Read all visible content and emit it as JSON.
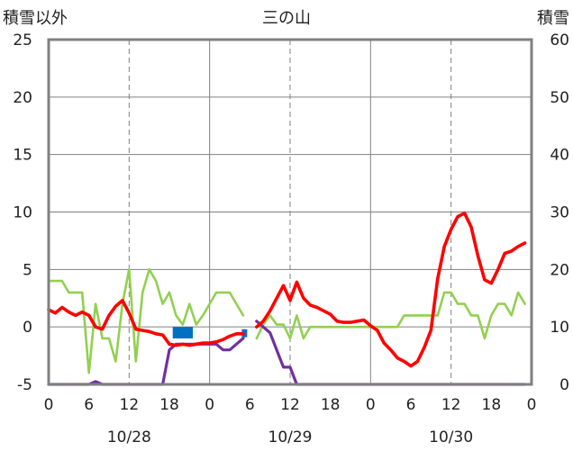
{
  "chart_data": {
    "type": "line",
    "title": "三の山",
    "left_axis_title": "積雪以外",
    "right_axis_title": "積雪",
    "y_left": {
      "min": -5,
      "max": 25,
      "ticks": [
        "-5",
        "0",
        "5",
        "10",
        "15",
        "20",
        "25"
      ]
    },
    "y_right": {
      "min": 0,
      "max": 60,
      "ticks": [
        "0",
        "10",
        "20",
        "30",
        "40",
        "50",
        "60"
      ]
    },
    "x": {
      "min": 0,
      "max": 72,
      "unit": "hours"
    },
    "x_tick_labels": [
      "0",
      "6",
      "12",
      "18",
      "0",
      "6",
      "12",
      "18",
      "0",
      "6",
      "12",
      "18",
      "0"
    ],
    "date_labels": [
      {
        "hour": 12,
        "text": "10/28"
      },
      {
        "hour": 36,
        "text": "10/29"
      },
      {
        "hour": 60,
        "text": "10/30"
      }
    ],
    "colors": {
      "temperature": "#ff0000",
      "wind": "#92d050",
      "snow_depth": "#7030a0",
      "precipitation": "#0070c0",
      "frame": "#808080",
      "grid": "#808080"
    },
    "series": [
      {
        "key": "temperature",
        "axis": "left",
        "segments": [
          [
            [
              0,
              1.5
            ],
            [
              1,
              1.2
            ],
            [
              2,
              1.7
            ],
            [
              3,
              1.3
            ],
            [
              4,
              1.0
            ],
            [
              5,
              1.3
            ],
            [
              6,
              1.0
            ],
            [
              7,
              0
            ],
            [
              8,
              -0.2
            ],
            [
              9,
              1.0
            ],
            [
              10,
              1.8
            ],
            [
              11,
              2.3
            ],
            [
              12,
              1.2
            ],
            [
              13,
              -0.2
            ],
            [
              14,
              -0.3
            ],
            [
              15,
              -0.4
            ],
            [
              16,
              -0.6
            ],
            [
              17,
              -0.7
            ],
            [
              18,
              -1.5
            ],
            [
              19,
              -1.6
            ],
            [
              20,
              -1.5
            ],
            [
              21,
              -1.6
            ],
            [
              22,
              -1.5
            ],
            [
              23,
              -1.4
            ],
            [
              24,
              -1.4
            ],
            [
              25,
              -1.3
            ],
            [
              26,
              -1.1
            ],
            [
              27,
              -0.8
            ],
            [
              28,
              -0.6
            ],
            [
              29,
              -0.6
            ]
          ],
          [
            [
              31,
              0.0
            ],
            [
              32,
              0.5
            ],
            [
              33,
              1.4
            ],
            [
              34,
              2.5
            ],
            [
              35,
              3.6
            ],
            [
              36,
              2.3
            ],
            [
              37,
              3.9
            ],
            [
              38,
              2.5
            ],
            [
              39,
              1.9
            ],
            [
              40,
              1.7
            ],
            [
              41,
              1.4
            ],
            [
              42,
              1.1
            ],
            [
              43,
              0.5
            ],
            [
              44,
              0.4
            ],
            [
              45,
              0.4
            ],
            [
              46,
              0.5
            ],
            [
              47,
              0.6
            ],
            [
              48,
              0.1
            ],
            [
              49,
              -0.3
            ],
            [
              50,
              -1.4
            ],
            [
              51,
              -2.0
            ],
            [
              52,
              -2.7
            ],
            [
              53,
              -3.0
            ],
            [
              54,
              -3.4
            ],
            [
              55,
              -3.0
            ],
            [
              56,
              -1.8
            ],
            [
              57,
              -0.3
            ],
            [
              58,
              4.2
            ],
            [
              59,
              7.0
            ],
            [
              60,
              8.5
            ],
            [
              61,
              9.6
            ],
            [
              62,
              9.9
            ],
            [
              63,
              8.7
            ],
            [
              64,
              6.2
            ],
            [
              65,
              4.1
            ],
            [
              66,
              3.8
            ],
            [
              67,
              5.0
            ],
            [
              68,
              6.4
            ],
            [
              69,
              6.6
            ],
            [
              70,
              7.0
            ],
            [
              71,
              7.3
            ]
          ]
        ]
      },
      {
        "key": "wind",
        "axis": "left",
        "segments": [
          [
            [
              0,
              4.0
            ],
            [
              1,
              4.0
            ],
            [
              2,
              4.0
            ],
            [
              3,
              3.0
            ],
            [
              4,
              3.0
            ],
            [
              5,
              3.0
            ],
            [
              6,
              -4.0
            ],
            [
              7,
              2.0
            ],
            [
              8,
              -1.0
            ],
            [
              9,
              -1.0
            ],
            [
              10,
              -3.0
            ],
            [
              11,
              2.0
            ],
            [
              12,
              5.0
            ],
            [
              13,
              -3.0
            ],
            [
              14,
              3.0
            ],
            [
              15,
              5.0
            ],
            [
              16,
              4.0
            ],
            [
              17,
              2.0
            ],
            [
              18,
              3.0
            ],
            [
              19,
              1.0
            ],
            [
              20,
              0.2
            ],
            [
              21,
              2.0
            ],
            [
              22,
              0.2
            ],
            [
              23,
              1.0
            ],
            [
              24,
              2.0
            ],
            [
              25,
              3.0
            ],
            [
              26,
              3.0
            ],
            [
              27,
              3.0
            ],
            [
              28,
              2.0
            ],
            [
              29,
              1.0
            ]
          ],
          [
            [
              31,
              -1.0
            ],
            [
              32,
              0.2
            ],
            [
              33,
              1.0
            ],
            [
              34,
              0.2
            ],
            [
              35,
              0.2
            ],
            [
              36,
              -1.0
            ],
            [
              37,
              1.0
            ],
            [
              38,
              -1.0
            ],
            [
              39,
              0.0
            ],
            [
              40,
              0.0
            ],
            [
              41,
              0.0
            ],
            [
              42,
              0.0
            ],
            [
              43,
              0.0
            ],
            [
              44,
              0.0
            ],
            [
              45,
              0.0
            ],
            [
              46,
              0.0
            ],
            [
              47,
              0.0
            ],
            [
              48,
              0.0
            ],
            [
              49,
              0.0
            ],
            [
              50,
              0.0
            ],
            [
              51,
              0.0
            ],
            [
              52,
              0.0
            ],
            [
              53,
              1.0
            ],
            [
              54,
              1.0
            ],
            [
              55,
              1.0
            ],
            [
              56,
              1.0
            ],
            [
              57,
              1.0
            ],
            [
              58,
              1.0
            ],
            [
              59,
              3.0
            ],
            [
              60,
              3.0
            ],
            [
              61,
              2.0
            ],
            [
              62,
              2.0
            ],
            [
              63,
              1.0
            ],
            [
              64,
              1.0
            ],
            [
              65,
              -1.0
            ],
            [
              66,
              1.0
            ],
            [
              67,
              2.0
            ],
            [
              68,
              2.0
            ],
            [
              69,
              1.0
            ],
            [
              70,
              3.0
            ],
            [
              71,
              2.0
            ]
          ]
        ]
      },
      {
        "key": "snow_depth",
        "axis": "right",
        "segments": [
          [
            [
              0,
              0
            ],
            [
              1,
              0
            ],
            [
              2,
              0
            ],
            [
              3,
              0
            ],
            [
              4,
              0
            ],
            [
              5,
              0
            ],
            [
              6,
              0
            ],
            [
              7,
              0.5
            ],
            [
              8,
              0
            ],
            [
              9,
              0
            ],
            [
              10,
              0
            ],
            [
              11,
              0
            ],
            [
              12,
              0
            ],
            [
              13,
              0
            ],
            [
              14,
              0
            ],
            [
              15,
              0
            ],
            [
              16,
              0
            ],
            [
              17,
              0
            ],
            [
              18,
              6
            ],
            [
              19,
              7
            ],
            [
              20,
              7
            ],
            [
              21,
              7
            ],
            [
              22,
              7
            ],
            [
              23,
              7
            ],
            [
              24,
              7
            ],
            [
              25,
              7
            ],
            [
              26,
              6
            ],
            [
              27,
              6
            ],
            [
              28,
              7
            ],
            [
              29,
              8
            ]
          ],
          [
            [
              31,
              11
            ],
            [
              32,
              10
            ],
            [
              33,
              9
            ],
            [
              34,
              6
            ],
            [
              35,
              3
            ],
            [
              36,
              3
            ],
            [
              37,
              0
            ],
            [
              38,
              0
            ],
            [
              39,
              0
            ],
            [
              40,
              0
            ],
            [
              41,
              0
            ],
            [
              42,
              0
            ],
            [
              43,
              0
            ],
            [
              44,
              0
            ],
            [
              45,
              0
            ],
            [
              46,
              0
            ],
            [
              47,
              0
            ],
            [
              48,
              0
            ],
            [
              49,
              0
            ],
            [
              50,
              0
            ],
            [
              51,
              0
            ],
            [
              52,
              0
            ],
            [
              53,
              0
            ],
            [
              54,
              0
            ],
            [
              55,
              0
            ],
            [
              56,
              0
            ],
            [
              57,
              0
            ],
            [
              58,
              0
            ],
            [
              59,
              0
            ],
            [
              60,
              0
            ],
            [
              61,
              0
            ],
            [
              62,
              0
            ],
            [
              63,
              0
            ],
            [
              64,
              0
            ],
            [
              65,
              0
            ],
            [
              66,
              0
            ],
            [
              67,
              0
            ],
            [
              68,
              0
            ],
            [
              69,
              0
            ],
            [
              70,
              0
            ],
            [
              71,
              0
            ]
          ]
        ]
      }
    ],
    "precipitation_bars": [
      {
        "start": 18.5,
        "end": 21.5,
        "top": 0,
        "bottom": -1
      },
      {
        "start": 28.8,
        "end": 29.6,
        "top": -0.2,
        "bottom": -0.9
      }
    ]
  }
}
